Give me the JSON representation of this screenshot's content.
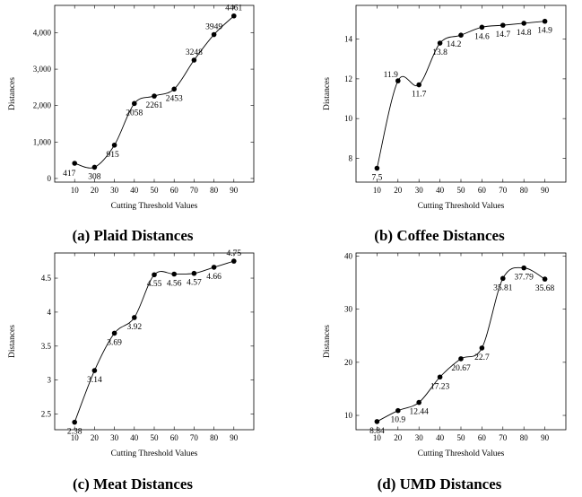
{
  "chart_data": [
    {
      "type": "line",
      "caption": "(a) Plaid Distances",
      "xlabel": "Cutting Threshold Values",
      "ylabel": "Distances",
      "x": [
        10,
        20,
        30,
        40,
        50,
        60,
        70,
        80,
        90
      ],
      "values": [
        417,
        308,
        915,
        2058,
        2261,
        2453,
        3248,
        3949,
        4461
      ],
      "value_labels": [
        "417",
        "308",
        "915",
        "2058",
        "2261",
        "2453",
        "3248",
        "3949",
        "4461"
      ],
      "xlim": [
        0,
        100
      ],
      "ylim": [
        -100,
        4750
      ],
      "xticks": [
        10,
        20,
        30,
        40,
        50,
        60,
        70,
        80,
        90
      ],
      "yticks": [
        0,
        1000,
        2000,
        3000,
        4000
      ],
      "ytick_labels": [
        "0",
        "1,000",
        "2,000",
        "3,000",
        "4,000"
      ],
      "grid": false,
      "smooth": true
    },
    {
      "type": "line",
      "caption": "(b) Coffee Distances",
      "xlabel": "Cutting Threshold Values",
      "ylabel": "Distances",
      "x": [
        10,
        20,
        30,
        40,
        50,
        60,
        70,
        80,
        90
      ],
      "values": [
        7.5,
        11.9,
        11.7,
        13.8,
        14.2,
        14.6,
        14.7,
        14.8,
        14.9
      ],
      "value_labels": [
        "7.5",
        "11.9",
        "11.7",
        "13.8",
        "14.2",
        "14.6",
        "14.7",
        "14.8",
        "14.9"
      ],
      "xlim": [
        0,
        100
      ],
      "ylim": [
        6.8,
        15.7
      ],
      "xticks": [
        10,
        20,
        30,
        40,
        50,
        60,
        70,
        80,
        90
      ],
      "yticks": [
        8,
        10,
        12,
        14
      ],
      "ytick_labels": [
        "8",
        "10",
        "12",
        "14"
      ],
      "grid": false,
      "smooth": true
    },
    {
      "type": "line",
      "caption": "(c) Meat Distances",
      "xlabel": "Cutting Threshold Values",
      "ylabel": "Distances",
      "x": [
        10,
        20,
        30,
        40,
        50,
        60,
        70,
        80,
        90
      ],
      "values": [
        2.38,
        3.14,
        3.69,
        3.92,
        4.55,
        4.56,
        4.57,
        4.66,
        4.75
      ],
      "value_labels": [
        "2.38",
        "3.14",
        "3.69",
        "3.92",
        "4.55",
        "4.56",
        "4.57",
        "4.66",
        "4.75"
      ],
      "xlim": [
        0,
        100
      ],
      "ylim": [
        2.27,
        4.87
      ],
      "xticks": [
        10,
        20,
        30,
        40,
        50,
        60,
        70,
        80,
        90
      ],
      "yticks": [
        2.5,
        3,
        3.5,
        4,
        4.5
      ],
      "ytick_labels": [
        "2.5",
        "3",
        "3.5",
        "4",
        "4.5"
      ],
      "grid": false,
      "smooth": true
    },
    {
      "type": "line",
      "caption": "(d) UMD Distances",
      "xlabel": "Cutting Threshold Values",
      "ylabel": "Distances",
      "x": [
        10,
        20,
        30,
        40,
        50,
        60,
        70,
        80,
        90
      ],
      "values": [
        8.84,
        10.9,
        12.44,
        17.23,
        20.67,
        22.7,
        35.81,
        37.79,
        35.68
      ],
      "value_labels": [
        "8.84",
        "10.9",
        "12.44",
        "17.23",
        "20.67",
        "22.7",
        "35.81",
        "37.79",
        "35.68"
      ],
      "xlim": [
        0,
        100
      ],
      "ylim": [
        7.3,
        40.6
      ],
      "xticks": [
        10,
        20,
        30,
        40,
        50,
        60,
        70,
        80,
        90
      ],
      "yticks": [
        10,
        20,
        30,
        40
      ],
      "ytick_labels": [
        "10",
        "20",
        "30",
        "40"
      ],
      "grid": false,
      "smooth": true
    }
  ]
}
